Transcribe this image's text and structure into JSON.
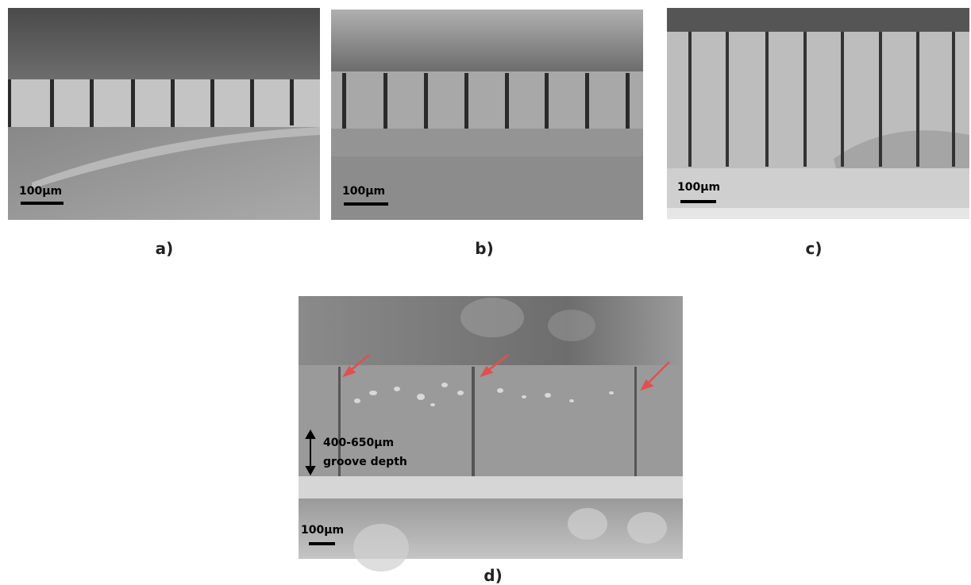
{
  "panels": [
    {
      "label": "a)",
      "scale_bar": "100µm"
    },
    {
      "label": "b)",
      "scale_bar": "100µm"
    },
    {
      "label": "c)",
      "scale_bar": "100µm"
    },
    {
      "label": "d)",
      "scale_bar": "100µm"
    }
  ],
  "annotation": {
    "range": "400-650µm",
    "caption": "groove depth"
  }
}
